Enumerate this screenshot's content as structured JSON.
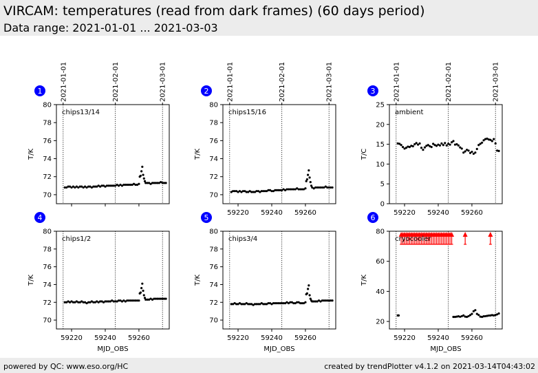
{
  "header": {
    "title": "VIRCAM: temperatures (read from dark frames) (60 days period)",
    "subtitle": "Data range: 2021-01-01 ... 2021-03-03"
  },
  "footer": {
    "left": "powered by QC: www.eso.org/HC",
    "right": "created by trendPlotter v4.1.2 on 2021-03-14T04:43:02"
  },
  "date_markers": [
    {
      "label": "2021-01-01",
      "mjd": 59215
    },
    {
      "label": "2021-02-01",
      "mjd": 59246
    },
    {
      "label": "2021-03-01",
      "mjd": 59274
    }
  ],
  "colors": {
    "points": "#000000",
    "flag": "#ff0000",
    "badge": "#0000ff",
    "header_bg": "#ececec"
  },
  "chart_data": [
    {
      "type": "scatter",
      "panel": "1",
      "label": "chips13/14",
      "ylabel": "T/K",
      "xlabel": "",
      "xlim": [
        59211,
        59278
      ],
      "ylim": [
        69,
        80
      ],
      "xticks": [
        59220,
        59240,
        59260
      ],
      "yticks": [
        70,
        72,
        74,
        76,
        78,
        80
      ],
      "show_xtick_labels": false,
      "x": [
        59216,
        59217,
        59218,
        59219,
        59220,
        59221,
        59222,
        59223,
        59224,
        59225,
        59226,
        59227,
        59228,
        59229,
        59230,
        59231,
        59232,
        59233,
        59234,
        59235,
        59236,
        59237,
        59238,
        59239,
        59240,
        59241,
        59242,
        59243,
        59244,
        59245,
        59246,
        59247,
        59248,
        59249,
        59250,
        59251,
        59252,
        59253,
        59254,
        59255,
        59256,
        59257,
        59258,
        59259,
        59260,
        59260.5,
        59261,
        59261.5,
        59262,
        59262.5,
        59263,
        59263.5,
        59264,
        59265,
        59266,
        59267,
        59268,
        59269,
        59270,
        59271,
        59272,
        59273,
        59274,
        59275,
        59276
      ],
      "y": [
        70.8,
        70.8,
        70.9,
        70.9,
        70.8,
        70.9,
        70.8,
        70.9,
        70.8,
        70.9,
        70.9,
        70.8,
        70.9,
        70.8,
        70.9,
        70.9,
        70.8,
        70.9,
        70.9,
        70.9,
        71.0,
        70.9,
        71.0,
        71.0,
        70.9,
        71.0,
        71.0,
        71.0,
        71.0,
        71.0,
        71.0,
        71.1,
        71.0,
        71.1,
        71.0,
        71.1,
        71.1,
        71.1,
        71.1,
        71.1,
        71.1,
        71.2,
        71.1,
        71.1,
        71.2,
        72.0,
        72.1,
        72.6,
        73.1,
        72.2,
        71.8,
        71.5,
        71.3,
        71.3,
        71.3,
        71.2,
        71.3,
        71.3,
        71.3,
        71.3,
        71.3,
        71.4,
        71.3,
        71.3,
        71.3
      ]
    },
    {
      "type": "scatter",
      "panel": "2",
      "label": "chips15/16",
      "ylabel": "T/K",
      "xlabel": "",
      "xlim": [
        59211,
        59278
      ],
      "ylim": [
        69,
        80
      ],
      "xticks": [
        59220,
        59240,
        59260
      ],
      "yticks": [
        70,
        72,
        74,
        76,
        78,
        80
      ],
      "show_xtick_labels": true,
      "x": [
        59216,
        59217,
        59218,
        59219,
        59220,
        59221,
        59222,
        59223,
        59224,
        59225,
        59226,
        59227,
        59228,
        59229,
        59230,
        59231,
        59232,
        59233,
        59234,
        59235,
        59236,
        59237,
        59238,
        59239,
        59240,
        59241,
        59242,
        59243,
        59244,
        59245,
        59246,
        59247,
        59248,
        59249,
        59250,
        59251,
        59252,
        59253,
        59254,
        59255,
        59256,
        59257,
        59258,
        59259,
        59260,
        59260.5,
        59261,
        59261.5,
        59262,
        59262.5,
        59263,
        59263.5,
        59264,
        59265,
        59266,
        59267,
        59268,
        59269,
        59270,
        59271,
        59272,
        59273,
        59274,
        59275,
        59276
      ],
      "y": [
        70.3,
        70.4,
        70.4,
        70.4,
        70.3,
        70.4,
        70.3,
        70.4,
        70.4,
        70.3,
        70.3,
        70.4,
        70.3,
        70.3,
        70.3,
        70.4,
        70.4,
        70.3,
        70.4,
        70.4,
        70.4,
        70.4,
        70.5,
        70.5,
        70.4,
        70.4,
        70.5,
        70.5,
        70.5,
        70.5,
        70.5,
        70.6,
        70.5,
        70.6,
        70.6,
        70.6,
        70.6,
        70.6,
        70.6,
        70.7,
        70.6,
        70.6,
        70.6,
        70.6,
        70.7,
        71.5,
        71.7,
        72.2,
        72.7,
        71.9,
        71.4,
        71.0,
        70.8,
        70.7,
        70.8,
        70.8,
        70.8,
        70.8,
        70.8,
        70.8,
        70.9,
        70.8,
        70.8,
        70.8,
        70.8
      ]
    },
    {
      "type": "scatter",
      "panel": "3",
      "label": "ambient",
      "ylabel": "T/C",
      "xlabel": "",
      "xlim": [
        59211,
        59278
      ],
      "ylim": [
        0,
        25
      ],
      "xticks": [
        59220,
        59240,
        59260
      ],
      "yticks": [
        0,
        5,
        10,
        15,
        20,
        25
      ],
      "show_xtick_labels": true,
      "x": [
        59216,
        59217,
        59218,
        59219,
        59220,
        59221,
        59222,
        59223,
        59224,
        59225,
        59226,
        59227,
        59228,
        59229,
        59230,
        59231,
        59232,
        59233,
        59234,
        59235,
        59236,
        59237,
        59238,
        59239,
        59240,
        59241,
        59242,
        59243,
        59244,
        59245,
        59246,
        59247,
        59248,
        59249,
        59250,
        59251,
        59252,
        59253,
        59254,
        59255,
        59256,
        59257,
        59258,
        59259,
        59260,
        59261,
        59262,
        59263,
        59264,
        59265,
        59266,
        59267,
        59268,
        59269,
        59270,
        59271,
        59272,
        59273,
        59274,
        59275,
        59276
      ],
      "y": [
        15.2,
        15.1,
        14.8,
        14.3,
        13.9,
        14.1,
        14.4,
        14.3,
        14.6,
        14.5,
        15.0,
        15.3,
        14.9,
        15.2,
        14.1,
        13.6,
        14.2,
        14.6,
        14.8,
        14.5,
        14.3,
        15.1,
        14.8,
        14.6,
        14.9,
        14.7,
        15.2,
        14.8,
        15.3,
        14.7,
        15.1,
        14.9,
        15.5,
        15.8,
        14.9,
        15.0,
        14.7,
        14.2,
        13.9,
        12.9,
        13.2,
        13.6,
        13.4,
        12.8,
        13.1,
        12.6,
        12.9,
        13.8,
        14.8,
        15.1,
        15.4,
        16.0,
        16.3,
        16.4,
        16.2,
        16.1,
        15.8,
        16.3,
        15.2,
        13.4,
        13.3
      ]
    },
    {
      "type": "scatter",
      "panel": "4",
      "label": "chips1/2",
      "ylabel": "T/K",
      "xlabel": "MJD_OBS",
      "xlim": [
        59211,
        59278
      ],
      "ylim": [
        69,
        80
      ],
      "xticks": [
        59220,
        59240,
        59260
      ],
      "yticks": [
        70,
        72,
        74,
        76,
        78,
        80
      ],
      "show_xtick_labels": true,
      "x": [
        59216,
        59217,
        59218,
        59219,
        59220,
        59221,
        59222,
        59223,
        59224,
        59225,
        59226,
        59227,
        59228,
        59229,
        59230,
        59231,
        59232,
        59233,
        59234,
        59235,
        59236,
        59237,
        59238,
        59239,
        59240,
        59241,
        59242,
        59243,
        59244,
        59245,
        59246,
        59247,
        59248,
        59249,
        59250,
        59251,
        59252,
        59253,
        59254,
        59255,
        59256,
        59257,
        59258,
        59259,
        59260,
        59260.5,
        59261,
        59261.5,
        59262,
        59262.5,
        59263,
        59263.5,
        59264,
        59265,
        59266,
        59267,
        59268,
        59269,
        59270,
        59271,
        59272,
        59273,
        59274,
        59275,
        59276
      ],
      "y": [
        72.0,
        72.0,
        72.1,
        72.0,
        72.1,
        72.0,
        72.0,
        72.1,
        72.0,
        72.0,
        72.1,
        72.0,
        72.0,
        71.9,
        72.0,
        72.0,
        72.1,
        72.0,
        72.0,
        72.1,
        72.0,
        72.1,
        72.1,
        72.0,
        72.1,
        72.1,
        72.1,
        72.1,
        72.2,
        72.1,
        72.1,
        72.1,
        72.2,
        72.2,
        72.1,
        72.2,
        72.1,
        72.2,
        72.2,
        72.2,
        72.2,
        72.2,
        72.2,
        72.2,
        72.2,
        73.0,
        73.1,
        73.6,
        74.1,
        73.3,
        72.8,
        72.5,
        72.3,
        72.3,
        72.3,
        72.4,
        72.3,
        72.4,
        72.4,
        72.4,
        72.4,
        72.4,
        72.4,
        72.4,
        72.4
      ]
    },
    {
      "type": "scatter",
      "panel": "5",
      "label": "chips3/4",
      "ylabel": "T/K",
      "xlabel": "MJD_OBS",
      "xlim": [
        59211,
        59278
      ],
      "ylim": [
        69,
        80
      ],
      "xticks": [
        59220,
        59240,
        59260
      ],
      "yticks": [
        70,
        72,
        74,
        76,
        78,
        80
      ],
      "show_xtick_labels": true,
      "x": [
        59216,
        59217,
        59218,
        59219,
        59220,
        59221,
        59222,
        59223,
        59224,
        59225,
        59226,
        59227,
        59228,
        59229,
        59230,
        59231,
        59232,
        59233,
        59234,
        59235,
        59236,
        59237,
        59238,
        59239,
        59240,
        59241,
        59242,
        59243,
        59244,
        59245,
        59246,
        59247,
        59248,
        59249,
        59250,
        59251,
        59252,
        59253,
        59254,
        59255,
        59256,
        59257,
        59258,
        59259,
        59260,
        59260.5,
        59261,
        59261.5,
        59262,
        59262.5,
        59263,
        59263.5,
        59264,
        59265,
        59266,
        59267,
        59268,
        59269,
        59270,
        59271,
        59272,
        59273,
        59274,
        59275,
        59276
      ],
      "y": [
        71.8,
        71.8,
        71.9,
        71.8,
        71.8,
        71.9,
        71.8,
        71.8,
        71.8,
        71.9,
        71.8,
        71.8,
        71.8,
        71.7,
        71.8,
        71.8,
        71.8,
        71.8,
        71.9,
        71.8,
        71.8,
        71.8,
        71.9,
        71.9,
        71.8,
        71.9,
        71.9,
        71.9,
        71.9,
        71.9,
        71.9,
        71.9,
        71.9,
        72.0,
        71.9,
        72.0,
        72.0,
        71.9,
        71.9,
        72.0,
        72.0,
        71.9,
        71.9,
        71.9,
        72.0,
        72.9,
        73.0,
        73.5,
        73.9,
        72.8,
        72.4,
        72.2,
        72.1,
        72.1,
        72.1,
        72.1,
        72.2,
        72.1,
        72.2,
        72.2,
        72.2,
        72.2,
        72.2,
        72.2,
        72.2
      ]
    },
    {
      "type": "scatter",
      "panel": "6",
      "label": "cryocooler",
      "ylabel": "T/K",
      "xlabel": "MJD_OBS",
      "xlim": [
        59211,
        59278
      ],
      "ylim": [
        15,
        80
      ],
      "xticks": [
        59220,
        59240,
        59260
      ],
      "yticks": [
        20,
        40,
        60,
        80
      ],
      "show_xtick_labels": true,
      "x": [
        59216,
        59216.5,
        59249,
        59250,
        59251,
        59252,
        59253,
        59254,
        59255,
        59256,
        59257,
        59258,
        59259,
        59260,
        59261,
        59262,
        59263,
        59264,
        59265,
        59266,
        59267,
        59268,
        59269,
        59270,
        59271,
        59272,
        59273,
        59274,
        59275,
        59276
      ],
      "y": [
        24.0,
        24.0,
        23.0,
        23.0,
        23.2,
        23.4,
        23.1,
        23.5,
        24.0,
        23.2,
        23.0,
        23.5,
        24.2,
        25.0,
        26.8,
        27.5,
        25.0,
        24.3,
        23.2,
        23.0,
        23.4,
        23.5,
        23.7,
        23.9,
        24.0,
        24.2,
        24.0,
        24.3,
        24.7,
        25.3
      ],
      "flag_x": [
        59218,
        59219,
        59220,
        59221,
        59222,
        59223,
        59224,
        59225,
        59226,
        59227,
        59228,
        59229,
        59230,
        59231,
        59232,
        59233,
        59234,
        59235,
        59236,
        59237,
        59238,
        59239,
        59240,
        59241,
        59242,
        59243,
        59244,
        59245,
        59246,
        59247,
        59248,
        59256,
        59271
      ],
      "flag_y": 80
    }
  ]
}
